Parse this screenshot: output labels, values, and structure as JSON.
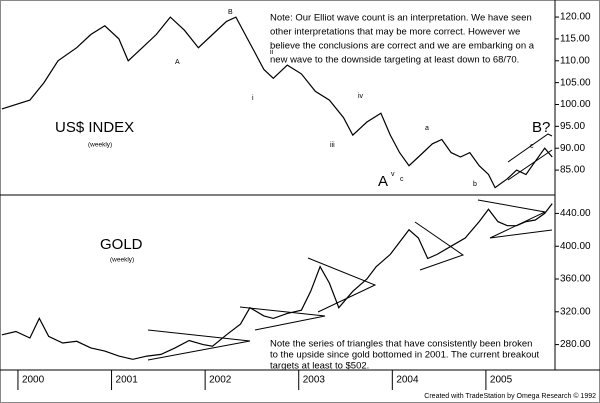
{
  "chart_data": [
    {
      "type": "line",
      "title": "US$ INDEX",
      "subtitle": "(weekly)",
      "note": [
        "Note: Our Elliot wave count is an interpretation.  We have seen",
        "other interpretations that may be more correct.  However we",
        "believe the conclusions are correct and we are embarking on a",
        "new wave to the downside targeting at least down to 68/70."
      ],
      "labels": [
        "B",
        "A",
        "A",
        "i",
        "ii",
        "iii",
        "iv",
        "v",
        "a",
        "b",
        "c",
        "B?",
        "c"
      ],
      "xlim": [
        1999.68,
        2005.61
      ],
      "ylim": [
        79.3,
        123.9
      ],
      "yticks": [
        {
          "value": 85,
          "label": "85.00"
        },
        {
          "value": 90,
          "label": "90.00"
        },
        {
          "value": 95,
          "label": "95.00"
        },
        {
          "value": 100,
          "label": "100.00"
        },
        {
          "value": 105,
          "label": "105.00"
        },
        {
          "value": 110,
          "label": "110.00"
        },
        {
          "value": 115,
          "label": "115.00"
        },
        {
          "value": 120,
          "label": "120.00"
        }
      ],
      "series": [
        {
          "color": "#000000",
          "x": [
            1999.7,
            2000.0,
            2000.15,
            2000.3,
            2000.5,
            2000.65,
            2000.8,
            2000.95,
            2001.05,
            2001.2,
            2001.35,
            2001.5,
            2001.65,
            2001.8,
            2001.95,
            2002.1,
            2002.2,
            2002.3,
            2002.4,
            2002.5,
            2002.6,
            2002.75,
            2002.9,
            2003.05,
            2003.2,
            2003.35,
            2003.45,
            2003.6,
            2003.75,
            2003.85,
            2003.95,
            2004.05,
            2004.15,
            2004.3,
            2004.4,
            2004.5,
            2004.6,
            2004.7,
            2004.8,
            2004.9,
            2004.97,
            2005.1,
            2005.2,
            2005.3,
            2005.4,
            2005.5,
            2005.58
          ],
          "values": [
            99,
            101,
            105,
            110,
            113,
            116,
            118,
            115,
            110,
            113,
            116,
            120,
            117,
            113,
            116,
            119,
            120,
            116,
            112,
            108,
            106,
            109,
            107,
            103,
            101,
            97,
            93,
            96,
            98,
            93,
            89,
            86,
            88,
            91,
            92,
            89,
            88,
            89,
            86,
            84,
            81,
            83,
            85,
            84,
            87,
            90,
            88
          ]
        }
      ]
    },
    {
      "type": "line",
      "title": "GOLD",
      "subtitle": "(weekly)",
      "note": [
        "Note the series of triangles that have consistently been broken",
        "to the upside since gold bottomed in 2001.  The current breakout",
        "targets at least to $502."
      ],
      "footer": "Created with TradeStation by Omega Research © 1992",
      "xlim": [
        1999.68,
        2005.61
      ],
      "xticks": [
        2000,
        2001,
        2002,
        2003,
        2004,
        2005
      ],
      "ylim": [
        249,
        462.5
      ],
      "yticks": [
        {
          "value": 280,
          "label": "280.00"
        },
        {
          "value": 320,
          "label": "320.00"
        },
        {
          "value": 360,
          "label": "360.00"
        },
        {
          "value": 400,
          "label": "400.00"
        },
        {
          "value": 440,
          "label": "440.00"
        }
      ],
      "series": [
        {
          "color": "#000000",
          "x": [
            1999.7,
            1999.85,
            2000.0,
            2000.1,
            2000.2,
            2000.35,
            2000.5,
            2000.65,
            2000.8,
            2000.95,
            2001.1,
            2001.25,
            2001.4,
            2001.55,
            2001.7,
            2001.85,
            2001.95,
            2002.1,
            2002.25,
            2002.35,
            2002.5,
            2002.6,
            2002.75,
            2002.9,
            2003.0,
            2003.1,
            2003.2,
            2003.3,
            2003.45,
            2003.6,
            2003.7,
            2003.85,
            2003.95,
            2004.05,
            2004.15,
            2004.25,
            2004.35,
            2004.5,
            2004.65,
            2004.8,
            2004.9,
            2005.0,
            2005.1,
            2005.2,
            2005.3,
            2005.4,
            2005.5,
            2005.58
          ],
          "values": [
            292,
            296,
            288,
            312,
            290,
            282,
            284,
            276,
            272,
            266,
            262,
            266,
            268,
            276,
            285,
            280,
            278,
            292,
            305,
            325,
            315,
            312,
            318,
            322,
            345,
            375,
            355,
            325,
            345,
            360,
            375,
            390,
            405,
            420,
            410,
            385,
            390,
            400,
            410,
            430,
            445,
            430,
            425,
            425,
            430,
            432,
            440,
            452
          ]
        }
      ]
    }
  ]
}
